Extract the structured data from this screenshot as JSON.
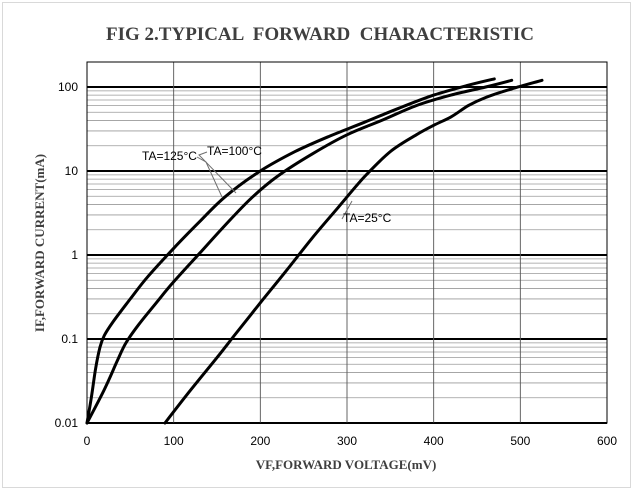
{
  "chart_data": {
    "type": "line",
    "title": "FIG 2.TYPICAL  FORWARD  CHARACTERISTIC",
    "xlabel": "VF,FORWARD VOLTAGE(mV)",
    "ylabel": "IF,FORWARD CURRENT(mA)",
    "x_scale": "linear",
    "y_scale": "log",
    "xlim": [
      0,
      600
    ],
    "ylim": [
      0.01,
      200
    ],
    "x_ticks": [
      "0",
      "100",
      "200",
      "300",
      "400",
      "500",
      "600"
    ],
    "y_ticks": [
      "0.01",
      "0.1",
      "1",
      "10",
      "100"
    ],
    "grid": true,
    "series": [
      {
        "name": "TA=125°C",
        "color": "#000000",
        "points": [
          [
            0,
            0.01
          ],
          [
            5,
            0.02
          ],
          [
            10,
            0.045
          ],
          [
            15,
            0.08
          ],
          [
            20,
            0.11
          ],
          [
            30,
            0.16
          ],
          [
            50,
            0.3
          ],
          [
            70,
            0.55
          ],
          [
            100,
            1.2
          ],
          [
            130,
            2.5
          ],
          [
            160,
            5
          ],
          [
            200,
            10
          ],
          [
            240,
            17
          ],
          [
            280,
            26
          ],
          [
            320,
            38
          ],
          [
            360,
            56
          ],
          [
            400,
            80
          ],
          [
            440,
            105
          ],
          [
            470,
            125
          ]
        ]
      },
      {
        "name": "TA=100°C",
        "color": "#000000",
        "points": [
          [
            0,
            0.01
          ],
          [
            20,
            0.025
          ],
          [
            35,
            0.055
          ],
          [
            45,
            0.09
          ],
          [
            60,
            0.15
          ],
          [
            80,
            0.27
          ],
          [
            100,
            0.48
          ],
          [
            130,
            1.05
          ],
          [
            160,
            2.3
          ],
          [
            190,
            4.8
          ],
          [
            220,
            8.7
          ],
          [
            260,
            16
          ],
          [
            300,
            27
          ],
          [
            340,
            40
          ],
          [
            380,
            60
          ],
          [
            420,
            80
          ],
          [
            460,
            100
          ],
          [
            490,
            120
          ]
        ]
      },
      {
        "name": "TA=25°C",
        "color": "#000000",
        "points": [
          [
            90,
            0.01
          ],
          [
            120,
            0.025
          ],
          [
            150,
            0.06
          ],
          [
            170,
            0.11
          ],
          [
            200,
            0.27
          ],
          [
            230,
            0.65
          ],
          [
            260,
            1.6
          ],
          [
            290,
            3.7
          ],
          [
            320,
            8.5
          ],
          [
            350,
            17
          ],
          [
            380,
            27
          ],
          [
            400,
            35
          ],
          [
            420,
            44
          ],
          [
            440,
            60
          ],
          [
            460,
            75
          ],
          [
            490,
            95
          ],
          [
            525,
            120
          ]
        ]
      }
    ],
    "annotations": [
      {
        "text": "TA=125°C",
        "series": "TA=125°C"
      },
      {
        "text": "TA=100°C",
        "series": "TA=100°C"
      },
      {
        "text": "TA=25°C",
        "series": "TA=25°C"
      }
    ]
  }
}
